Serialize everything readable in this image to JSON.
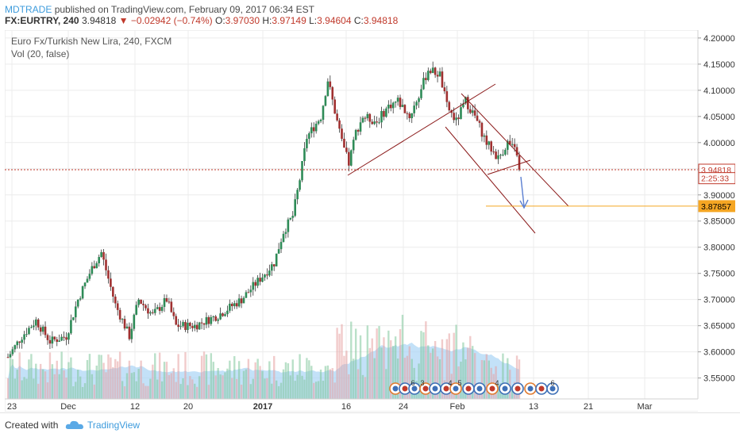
{
  "header": {
    "publisher": "MDTRADE",
    "published_text": "published on TradingView.com, February 09, 2017 06:34 EST",
    "symbol": "FX:EURTRY, 240",
    "last": "3.94818",
    "change": "▼ −0.02942 (−0.74%)",
    "o_label": "O:",
    "o_value": "3.97030",
    "h_label": "H:",
    "h_value": "3.97149",
    "l_label": "L:",
    "l_value": "3.94604",
    "c_label": "C:",
    "c_value": "3.94818"
  },
  "legend": {
    "title": "Euro Fx/Turkish New Lira, 240, FXCM",
    "volume": "Vol (20, false)"
  },
  "footer": {
    "created_with": "Created with",
    "brand": "TradingView",
    "logo_icon": "tradingview-cloud-icon"
  },
  "chart_data": {
    "type": "candlestick",
    "instrument": "EURTRY",
    "timeframe": "240",
    "ylim": [
      3.51,
      4.215
    ],
    "y_ticks": [
      "4.20000",
      "4.15000",
      "4.10000",
      "4.05000",
      "4.00000",
      "3.95000",
      "3.90000",
      "3.85000",
      "3.80000",
      "3.75000",
      "3.70000",
      "3.65000",
      "3.60000",
      "3.55000"
    ],
    "y_tick_values": [
      4.2,
      4.15,
      4.1,
      4.05,
      4.0,
      3.95,
      3.9,
      3.85,
      3.8,
      3.75,
      3.7,
      3.65,
      3.6,
      3.55
    ],
    "x_ticks": [
      "23",
      "Dec",
      "12",
      "20",
      "2017",
      "16",
      "24",
      "Feb",
      "13",
      "21",
      "Mar"
    ],
    "price_labels": [
      {
        "text": "3.94818",
        "value": 3.94818,
        "kind": "last-price",
        "color": "#c0392b"
      },
      {
        "text": "2:25:33",
        "value": 3.932,
        "kind": "bar-countdown",
        "color": "#c0392b"
      },
      {
        "text": "3.87857",
        "value": 3.87857,
        "kind": "horizontal-line",
        "color": "#f5a623"
      }
    ],
    "close_path": [
      {
        "x": 0,
        "y": 3.59
      },
      {
        "x": 6,
        "y": 3.63
      },
      {
        "x": 12,
        "y": 3.66
      },
      {
        "x": 18,
        "y": 3.62
      },
      {
        "x": 25,
        "y": 3.63
      },
      {
        "x": 30,
        "y": 3.7
      },
      {
        "x": 36,
        "y": 3.76
      },
      {
        "x": 40,
        "y": 3.79
      },
      {
        "x": 46,
        "y": 3.69
      },
      {
        "x": 52,
        "y": 3.63
      },
      {
        "x": 56,
        "y": 3.7
      },
      {
        "x": 62,
        "y": 3.67
      },
      {
        "x": 68,
        "y": 3.7
      },
      {
        "x": 72,
        "y": 3.65
      },
      {
        "x": 80,
        "y": 3.65
      },
      {
        "x": 90,
        "y": 3.67
      },
      {
        "x": 100,
        "y": 3.7
      },
      {
        "x": 108,
        "y": 3.74
      },
      {
        "x": 114,
        "y": 3.77
      },
      {
        "x": 118,
        "y": 3.83
      },
      {
        "x": 122,
        "y": 3.86
      },
      {
        "x": 125,
        "y": 3.93
      },
      {
        "x": 128,
        "y": 4.01
      },
      {
        "x": 131,
        "y": 4.03
      },
      {
        "x": 134,
        "y": 4.05
      },
      {
        "x": 137,
        "y": 4.12
      },
      {
        "x": 140,
        "y": 4.06
      },
      {
        "x": 143,
        "y": 4.0
      },
      {
        "x": 146,
        "y": 3.96
      },
      {
        "x": 149,
        "y": 4.02
      },
      {
        "x": 152,
        "y": 4.05
      },
      {
        "x": 158,
        "y": 4.04
      },
      {
        "x": 163,
        "y": 4.07
      },
      {
        "x": 167,
        "y": 4.08
      },
      {
        "x": 172,
        "y": 4.05
      },
      {
        "x": 176,
        "y": 4.09
      },
      {
        "x": 180,
        "y": 4.14
      },
      {
        "x": 185,
        "y": 4.13
      },
      {
        "x": 188,
        "y": 4.07
      },
      {
        "x": 192,
        "y": 4.04
      },
      {
        "x": 196,
        "y": 4.08
      },
      {
        "x": 200,
        "y": 4.05
      },
      {
        "x": 205,
        "y": 4.0
      },
      {
        "x": 210,
        "y": 3.97
      },
      {
        "x": 214,
        "y": 4.0
      },
      {
        "x": 218,
        "y": 3.98
      },
      {
        "x": 220,
        "y": 3.948
      }
    ],
    "volume_ma_note": "volume histogram with 20-period moving average (area)",
    "drawings": [
      {
        "type": "rising-channel-line"
      },
      {
        "type": "falling-channel-lines"
      },
      {
        "type": "arrow-down",
        "color": "#5b7fd1"
      },
      {
        "type": "horizontal-line",
        "value": 3.87857,
        "color": "#f5a623"
      }
    ],
    "event_markers": [
      "6",
      "3",
      "4",
      "5",
      "4",
      "6"
    ],
    "colors": {
      "up": "#2e8b57",
      "down": "#a03030",
      "grid": "#ececec",
      "trend": "#8b1a1a",
      "volume_ma": "#a9d4f5"
    }
  }
}
